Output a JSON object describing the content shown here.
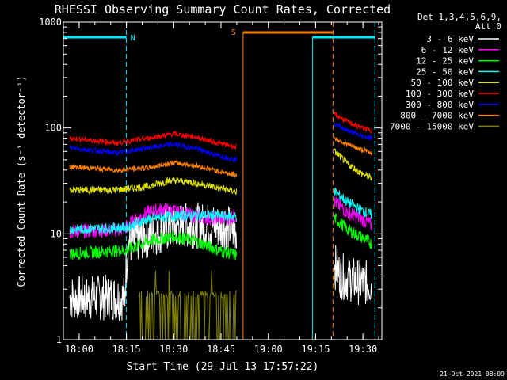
{
  "chart_data": {
    "type": "line",
    "title": "RHESSI Observing Summary Count Rates, Corrected",
    "xlabel": "Start Time (29-Jul-13 17:57:22)",
    "ylabel": "Corrected Count Rate (s⁻¹ detector⁻¹)",
    "yscale": "log",
    "xlim_minutes_after_1757": [
      -2,
      99
    ],
    "ylim": [
      1,
      1000
    ],
    "x_ticks": [
      {
        "label": "18:00",
        "minutes": 3
      },
      {
        "label": "18:15",
        "minutes": 18
      },
      {
        "label": "18:30",
        "minutes": 33
      },
      {
        "label": "18:45",
        "minutes": 48
      },
      {
        "label": "19:00",
        "minutes": 63
      },
      {
        "label": "19:15",
        "minutes": 78
      },
      {
        "label": "19:30",
        "minutes": 93
      }
    ],
    "y_ticks": [
      {
        "label": "1",
        "value": 1
      },
      {
        "label": "10",
        "value": 10
      },
      {
        "label": "100",
        "value": 100
      },
      {
        "label": "1000",
        "value": 1000
      }
    ],
    "legend_title": [
      "Det 1,3,4,5,6,9,",
      "Att 0"
    ],
    "series": [
      {
        "name": "3 - 6 keV",
        "color": "#ffffff",
        "noise": 0.22,
        "p1": [
          [
            0,
            2.5
          ],
          [
            17.5,
            2.5
          ],
          [
            18.5,
            8
          ],
          [
            24,
            9.5
          ],
          [
            35,
            12
          ],
          [
            45,
            12
          ],
          [
            53,
            11
          ]
        ],
        "p2": [
          [
            84,
            5
          ],
          [
            86,
            4
          ],
          [
            92,
            3.5
          ],
          [
            96,
            3.4
          ]
        ]
      },
      {
        "name": "6 - 12 keV",
        "color": "#ff00ff",
        "noise": 0.07,
        "p1": [
          [
            0,
            10.5
          ],
          [
            17,
            11
          ],
          [
            20,
            13
          ],
          [
            25,
            16
          ],
          [
            30,
            17
          ],
          [
            38,
            15
          ],
          [
            45,
            14
          ],
          [
            50,
            14
          ],
          [
            53,
            15
          ]
        ],
        "p2": [
          [
            84,
            20
          ],
          [
            88,
            16
          ],
          [
            92,
            14
          ],
          [
            96,
            12
          ]
        ]
      },
      {
        "name": "12 - 25 keV",
        "color": "#00ff00",
        "noise": 0.06,
        "p1": [
          [
            0,
            6.5
          ],
          [
            18,
            7
          ],
          [
            25,
            8.5
          ],
          [
            33,
            9.5
          ],
          [
            40,
            8.5
          ],
          [
            47,
            7
          ],
          [
            53,
            6.3
          ]
        ],
        "p2": [
          [
            84,
            14
          ],
          [
            88,
            11
          ],
          [
            92,
            9.5
          ],
          [
            96,
            8
          ]
        ]
      },
      {
        "name": "25 - 50 keV",
        "color": "#00ffff",
        "noise": 0.05,
        "p1": [
          [
            0,
            11
          ],
          [
            18,
            11.5
          ],
          [
            24,
            13.5
          ],
          [
            30,
            14.5
          ],
          [
            38,
            15
          ],
          [
            45,
            15
          ],
          [
            53,
            14.5
          ]
        ],
        "p2": [
          [
            84,
            25
          ],
          [
            88,
            20
          ],
          [
            92,
            17
          ],
          [
            96,
            15
          ]
        ]
      },
      {
        "name": "50 - 100 keV",
        "color": "#e0e000",
        "noise": 0.035,
        "p1": [
          [
            0,
            26
          ],
          [
            15,
            26
          ],
          [
            25,
            28
          ],
          [
            32,
            32
          ],
          [
            38,
            31
          ],
          [
            45,
            28
          ],
          [
            53,
            25
          ]
        ],
        "p2": [
          [
            84,
            60
          ],
          [
            88,
            46
          ],
          [
            92,
            38
          ],
          [
            96,
            33
          ]
        ]
      },
      {
        "name": "100 - 300 keV",
        "color": "#ff0000",
        "noise": 0.025,
        "p1": [
          [
            0,
            80
          ],
          [
            15,
            72
          ],
          [
            25,
            80
          ],
          [
            33,
            88
          ],
          [
            40,
            82
          ],
          [
            47,
            72
          ],
          [
            53,
            66
          ]
        ],
        "p2": [
          [
            84,
            135
          ],
          [
            88,
            115
          ],
          [
            92,
            102
          ],
          [
            96,
            94
          ]
        ]
      },
      {
        "name": "300 - 800 keV",
        "color": "#0000ff",
        "noise": 0.025,
        "p1": [
          [
            0,
            65
          ],
          [
            15,
            58
          ],
          [
            25,
            65
          ],
          [
            33,
            70
          ],
          [
            40,
            64
          ],
          [
            47,
            55
          ],
          [
            53,
            50
          ]
        ],
        "p2": [
          [
            84,
            110
          ],
          [
            88,
            95
          ],
          [
            92,
            85
          ],
          [
            96,
            80
          ]
        ]
      },
      {
        "name": "800 - 7000 keV",
        "color": "#ff8000",
        "noise": 0.025,
        "p1": [
          [
            0,
            43
          ],
          [
            15,
            40
          ],
          [
            25,
            42
          ],
          [
            33,
            47
          ],
          [
            40,
            44
          ],
          [
            47,
            39
          ],
          [
            53,
            36
          ]
        ],
        "p2": [
          [
            84,
            80
          ],
          [
            88,
            70
          ],
          [
            92,
            63
          ],
          [
            96,
            58
          ]
        ]
      },
      {
        "name": "7000 - 15000 keV",
        "color": "#808000",
        "noise": 0.0,
        "p1": [
          [
            22,
            2.5
          ],
          [
            53,
            2.5
          ]
        ],
        "p2": [
          [
            83.5,
            3
          ],
          [
            84.3,
            3
          ]
        ]
      }
    ],
    "annotations": [
      {
        "label": "N",
        "color": "#00e8ff"
      },
      {
        "label": "S",
        "color": "#ff8000"
      }
    ],
    "timestamp": "21-Oct-2021 08:09"
  }
}
